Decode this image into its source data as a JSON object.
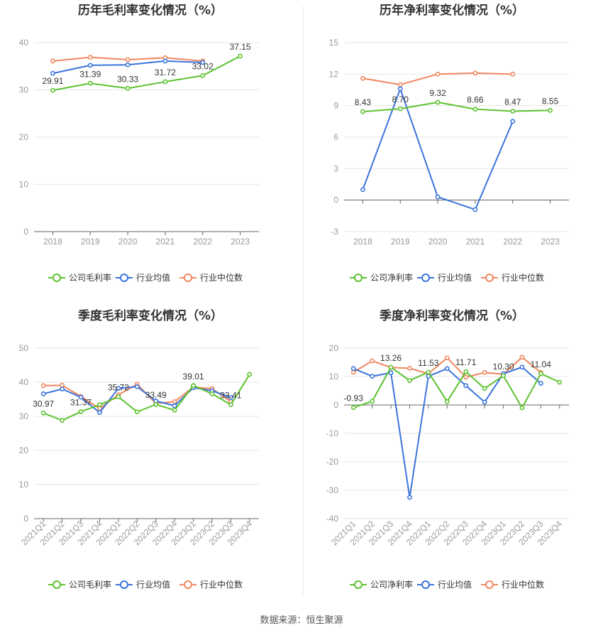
{
  "source": "数据来源：恒生聚源",
  "colors": {
    "company": "#5cc230",
    "avg": "#3b74dc",
    "median": "#f08760"
  },
  "chart_data": [
    {
      "type": "line",
      "title": "历年毛利率变化情况（%）",
      "categories": [
        "2018",
        "2019",
        "2020",
        "2021",
        "2022",
        "2023"
      ],
      "ylim": [
        0,
        40
      ],
      "yticks": [
        0,
        10,
        20,
        30,
        40
      ],
      "grid": true,
      "legend_position": "bottom",
      "series": [
        {
          "name": "公司毛利率",
          "values": [
            29.91,
            31.39,
            30.33,
            31.72,
            33.02,
            37.15
          ],
          "labels": [
            "29.91",
            "31.39",
            "30.33",
            "31.72",
            "33.02",
            "37.15"
          ]
        },
        {
          "name": "行业均值",
          "values": [
            33.5,
            35.2,
            35.3,
            36.1,
            35.8,
            null
          ]
        },
        {
          "name": "行业中位数",
          "values": [
            36.1,
            36.9,
            36.4,
            36.8,
            36.1,
            null
          ]
        }
      ]
    },
    {
      "type": "line",
      "title": "历年净利率变化情况（%）",
      "categories": [
        "2018",
        "2019",
        "2020",
        "2021",
        "2022",
        "2023"
      ],
      "ylim": [
        -3,
        15
      ],
      "yticks": [
        -3,
        0,
        3,
        6,
        9,
        12,
        15
      ],
      "grid": true,
      "legend_position": "bottom",
      "series": [
        {
          "name": "公司净利率",
          "values": [
            8.43,
            8.7,
            9.32,
            8.66,
            8.47,
            8.55
          ],
          "labels": [
            "8.43",
            "8.70",
            "9.32",
            "8.66",
            "8.47",
            "8.55"
          ]
        },
        {
          "name": "行业均值",
          "values": [
            1.0,
            10.6,
            0.3,
            -0.9,
            7.5,
            null
          ]
        },
        {
          "name": "行业中位数",
          "values": [
            11.6,
            11.0,
            12.0,
            12.1,
            12.0,
            null
          ]
        }
      ]
    },
    {
      "type": "line",
      "title": "季度毛利率变化情况（%）",
      "categories": [
        "2021Q1",
        "2021Q2",
        "2021Q3",
        "2021Q4",
        "2022Q1",
        "2022Q2",
        "2022Q3",
        "2022Q4",
        "2023Q1",
        "2023Q2",
        "2023Q3",
        "2023Q4"
      ],
      "ylim": [
        0,
        50
      ],
      "yticks": [
        0,
        10,
        20,
        30,
        40,
        50
      ],
      "grid": true,
      "legend_position": "bottom",
      "series": [
        {
          "name": "公司毛利率",
          "values": [
            30.97,
            28.8,
            31.37,
            33.4,
            35.72,
            31.3,
            33.49,
            31.8,
            39.01,
            36.6,
            33.41,
            42.3
          ],
          "labels": [
            "30.97",
            "",
            "31.37",
            "",
            "35.72",
            "",
            "33.49",
            "",
            "39.01",
            "",
            "33.41",
            ""
          ]
        },
        {
          "name": "行业均值",
          "values": [
            36.6,
            38.0,
            35.6,
            31.1,
            38.2,
            38.7,
            34.5,
            33.1,
            38.4,
            37.5,
            35.5,
            null
          ]
        },
        {
          "name": "行业中位数",
          "values": [
            39.0,
            39.1,
            35.8,
            32.3,
            36.3,
            39.4,
            33.8,
            34.3,
            38.6,
            38.1,
            34.3,
            null
          ]
        }
      ]
    },
    {
      "type": "line",
      "title": "季度净利率变化情况（%）",
      "categories": [
        "2021Q1",
        "2021Q2",
        "2021Q3",
        "2021Q4",
        "2022Q1",
        "2022Q2",
        "2022Q3",
        "2022Q4",
        "2023Q1",
        "2023Q2",
        "2023Q3",
        "2023Q4"
      ],
      "ylim": [
        -40,
        20
      ],
      "yticks": [
        -40,
        -30,
        -20,
        -10,
        0,
        10,
        20
      ],
      "grid": true,
      "legend_position": "bottom",
      "series": [
        {
          "name": "公司净利率",
          "values": [
            -0.93,
            1.3,
            13.26,
            8.6,
            11.53,
            1.2,
            11.71,
            5.8,
            10.3,
            -1.0,
            11.04,
            8.0
          ],
          "labels": [
            "-0.93",
            "",
            "13.26",
            "",
            "11.53",
            "",
            "11.71",
            "",
            "10.30",
            "",
            "11.04",
            ""
          ]
        },
        {
          "name": "行业均值",
          "values": [
            12.8,
            10.1,
            11.3,
            -32.5,
            10.1,
            12.8,
            6.8,
            1.0,
            11.0,
            13.3,
            7.6,
            null
          ]
        },
        {
          "name": "行业中位数",
          "values": [
            11.5,
            15.5,
            13.2,
            12.9,
            11.0,
            16.6,
            9.8,
            11.4,
            10.8,
            16.8,
            11.4,
            null
          ]
        }
      ]
    }
  ]
}
